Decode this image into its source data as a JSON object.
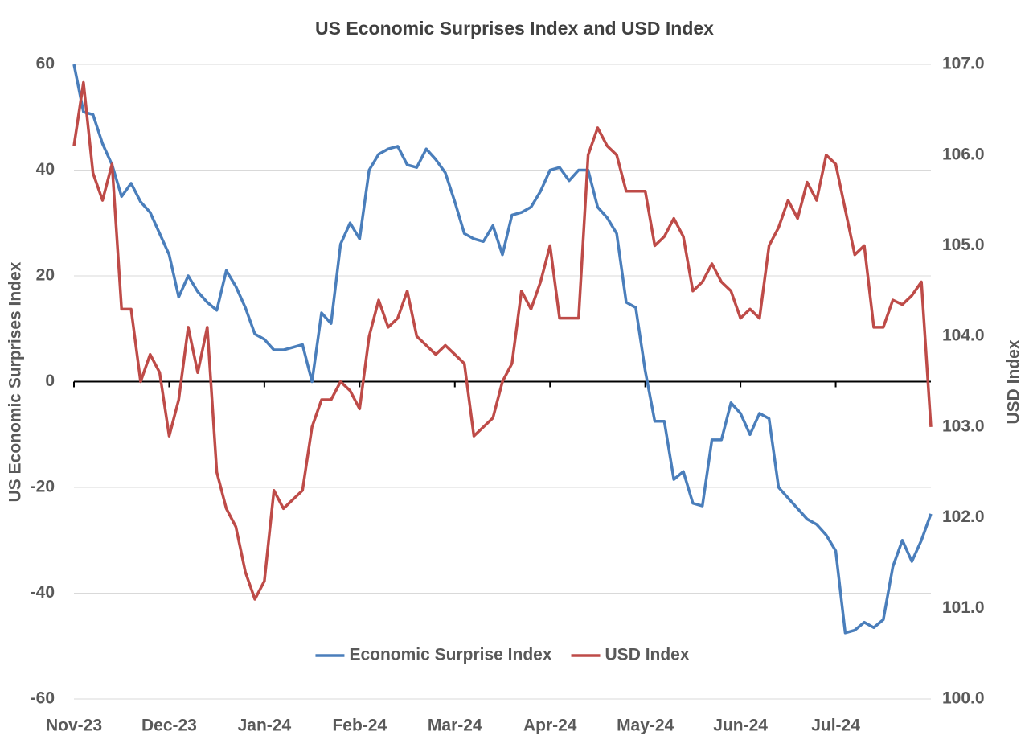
{
  "chart_data": {
    "type": "line",
    "title": "US Economic Surprises Index and USD Index",
    "y_label": "US Economic Surprises Index",
    "y2_label": "USD Index",
    "categories": [
      "Nov-23",
      null,
      null,
      null,
      null,
      null,
      null,
      null,
      null,
      null,
      "Dec-23",
      null,
      null,
      null,
      null,
      null,
      null,
      null,
      null,
      null,
      "Jan-24",
      null,
      null,
      null,
      null,
      null,
      null,
      null,
      null,
      null,
      "Feb-24",
      null,
      null,
      null,
      null,
      null,
      null,
      null,
      null,
      null,
      "Mar-24",
      null,
      null,
      null,
      null,
      null,
      null,
      null,
      null,
      null,
      "Apr-24",
      null,
      null,
      null,
      null,
      null,
      null,
      null,
      null,
      null,
      "May-24",
      null,
      null,
      null,
      null,
      null,
      null,
      null,
      null,
      null,
      "Jun-24",
      null,
      null,
      null,
      null,
      null,
      null,
      null,
      null,
      null,
      "Jul-24",
      null,
      null,
      null,
      null,
      null,
      null,
      null,
      null,
      null,
      null
    ],
    "series": [
      {
        "name": "Economic Surprise Index",
        "color": "#4a7ebb",
        "axis": "y",
        "values": [
          60,
          51,
          50.5,
          45,
          41,
          35,
          37.5,
          34,
          32,
          28,
          24,
          16,
          20,
          17,
          15,
          13.5,
          21,
          18,
          14,
          9,
          8,
          6,
          6,
          6.5,
          7,
          0,
          13,
          11,
          26,
          30,
          27,
          40,
          43,
          44,
          44.5,
          41,
          40.5,
          44,
          42,
          39.5,
          34,
          28,
          27,
          26.5,
          29.5,
          24,
          31.5,
          32,
          33,
          36,
          40,
          40.5,
          38,
          40,
          40,
          33,
          31,
          28,
          15,
          14,
          2,
          -7.5,
          -7.5,
          -18.5,
          -17,
          -23,
          -23.5,
          -11,
          -11,
          -4,
          -6,
          -10,
          -6,
          -7,
          -20,
          -22,
          -24,
          -26,
          -27,
          -29,
          -32,
          -47.5,
          -47,
          -45.5,
          -46.5,
          -45,
          -35,
          -30,
          -34,
          -30,
          -25
        ]
      },
      {
        "name": "USD Index",
        "color": "#be4b48",
        "axis": "y2",
        "values": [
          106.1,
          106.8,
          105.8,
          105.5,
          105.9,
          104.3,
          104.3,
          103.5,
          103.8,
          103.6,
          102.9,
          103.3,
          104.1,
          103.6,
          104.1,
          102.5,
          102.1,
          101.9,
          101.4,
          101.1,
          101.3,
          102.3,
          102.1,
          102.2,
          102.3,
          103,
          103.3,
          103.3,
          103.5,
          103.4,
          103.2,
          104,
          104.4,
          104.1,
          104.2,
          104.5,
          104,
          103.9,
          103.8,
          103.9,
          103.8,
          103.7,
          102.9,
          103,
          103.1,
          103.5,
          103.7,
          104.5,
          104.3,
          104.6,
          105,
          104.2,
          104.2,
          104.2,
          106,
          106.3,
          106.1,
          106,
          105.6,
          105.6,
          105.6,
          105,
          105.1,
          105.3,
          105.1,
          104.5,
          104.6,
          104.8,
          104.6,
          104.5,
          104.2,
          104.3,
          104.2,
          105,
          105.2,
          105.5,
          105.3,
          105.7,
          105.5,
          106,
          105.9,
          105.4,
          104.9,
          105,
          104.1,
          104.1,
          104.4,
          104.35,
          104.45,
          104.6,
          103
        ]
      }
    ],
    "ylim": [
      -60,
      60
    ],
    "yticks": [
      -60,
      -40,
      -20,
      0,
      20,
      40,
      60
    ],
    "y2lim": [
      100,
      107
    ],
    "y2ticks": [
      {
        "value": 100,
        "label": "100.0"
      },
      {
        "value": 101,
        "label": "101.0"
      },
      {
        "value": 102,
        "label": "102.0"
      },
      {
        "value": 103,
        "label": "103.0"
      },
      {
        "value": 104,
        "label": "104.0"
      },
      {
        "value": 105,
        "label": "105.0"
      },
      {
        "value": 106,
        "label": "106.0"
      },
      {
        "value": 107,
        "label": "107.0"
      }
    ],
    "grid": true,
    "legend": "lower center"
  }
}
